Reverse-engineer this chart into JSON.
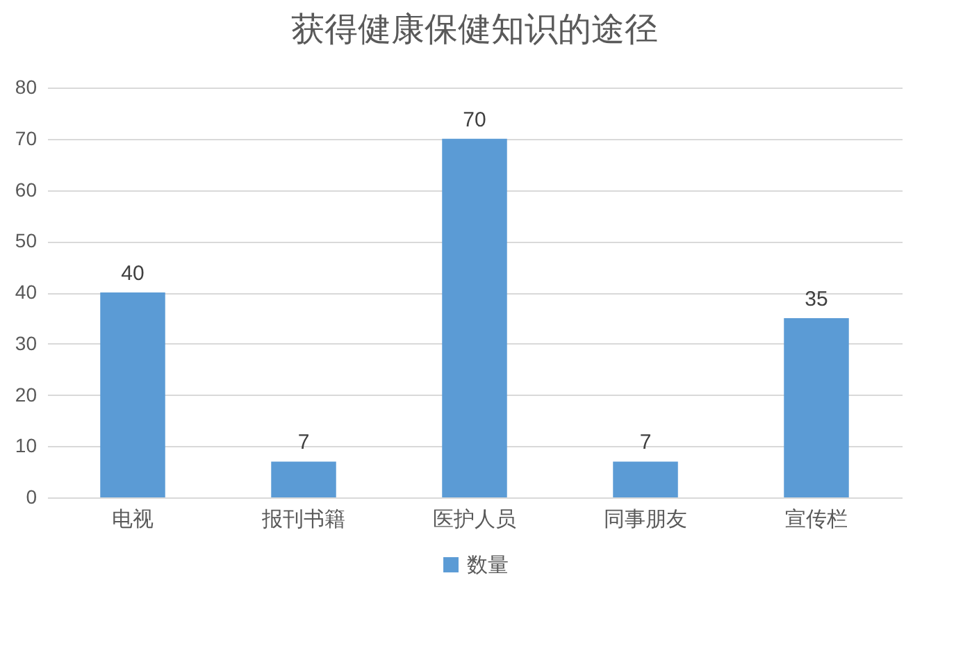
{
  "chart_data": {
    "type": "bar",
    "title": "获得健康保健知识的途径",
    "categories": [
      "电视",
      "报刊书籍",
      "医护人员",
      "同事朋友",
      "宣传栏"
    ],
    "series": [
      {
        "name": "数量",
        "color": "#5b9bd5",
        "values": [
          40,
          7,
          70,
          7,
          35
        ]
      }
    ],
    "ylim": [
      0,
      80
    ],
    "yticks": [
      0,
      10,
      20,
      30,
      40,
      50,
      60,
      70,
      80
    ],
    "grid": "y",
    "legend": "bottom",
    "data_labels": true
  }
}
